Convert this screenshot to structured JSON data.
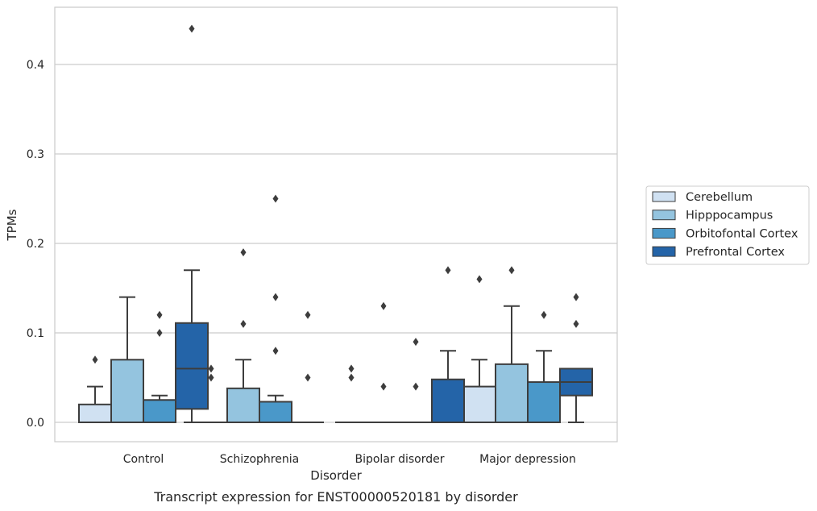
{
  "chart_data": {
    "type": "box",
    "xlabel": "Disorder",
    "ylabel": "TPMs",
    "caption": "Transcript expression for ENST00000520181 by disorder",
    "ylim": [
      -0.022,
      0.465
    ],
    "yticks": [
      0.0,
      0.1,
      0.2,
      0.3,
      0.4
    ],
    "ytick_labels": [
      "0.0",
      "0.1",
      "0.2",
      "0.3",
      "0.4"
    ],
    "grid": "y",
    "legend_position": "center-right outside",
    "categories": [
      "Control",
      "Schizophrenia",
      "Bipolar disorder",
      "Major depression"
    ],
    "series": [
      {
        "name": "Cerebellum",
        "color": "#d0e1f2",
        "boxes": [
          {
            "q1": 0.0,
            "median": 0.0,
            "q3": 0.02,
            "whislo": 0.0,
            "whishi": 0.04,
            "fliers": [
              0.07
            ]
          },
          {
            "q1": 0.0,
            "median": 0.0,
            "q3": 0.0,
            "whislo": 0.0,
            "whishi": 0.0,
            "fliers": [
              0.06,
              0.05
            ]
          },
          {
            "q1": 0.0,
            "median": 0.0,
            "q3": 0.0,
            "whislo": 0.0,
            "whishi": 0.0,
            "fliers": [
              0.06,
              0.05
            ]
          },
          {
            "q1": 0.0,
            "median": 0.0,
            "q3": 0.04,
            "whislo": 0.0,
            "whishi": 0.07,
            "fliers": [
              0.16
            ]
          }
        ]
      },
      {
        "name": "Hipppocampus",
        "color": "#94c4df",
        "boxes": [
          {
            "q1": 0.0,
            "median": 0.0,
            "q3": 0.07,
            "whislo": 0.0,
            "whishi": 0.14,
            "fliers": []
          },
          {
            "q1": 0.0,
            "median": 0.0,
            "q3": 0.038,
            "whislo": 0.0,
            "whishi": 0.07,
            "fliers": [
              0.19,
              0.11
            ]
          },
          {
            "q1": 0.0,
            "median": 0.0,
            "q3": 0.0,
            "whislo": 0.0,
            "whishi": 0.0,
            "fliers": [
              0.13,
              0.04
            ]
          },
          {
            "q1": 0.0,
            "median": 0.0,
            "q3": 0.065,
            "whislo": 0.0,
            "whishi": 0.13,
            "fliers": [
              0.17
            ]
          }
        ]
      },
      {
        "name": "Orbitofontal Cortex",
        "color": "#4a98c9",
        "boxes": [
          {
            "q1": 0.0,
            "median": 0.0,
            "q3": 0.025,
            "whislo": 0.0,
            "whishi": 0.03,
            "fliers": [
              0.12,
              0.1
            ]
          },
          {
            "q1": 0.0,
            "median": 0.0,
            "q3": 0.023,
            "whislo": 0.0,
            "whishi": 0.03,
            "fliers": [
              0.25,
              0.14,
              0.08
            ]
          },
          {
            "q1": 0.0,
            "median": 0.0,
            "q3": 0.0,
            "whislo": 0.0,
            "whishi": 0.0,
            "fliers": [
              0.09,
              0.04
            ]
          },
          {
            "q1": 0.0,
            "median": 0.0,
            "q3": 0.045,
            "whislo": 0.0,
            "whishi": 0.08,
            "fliers": [
              0.12
            ]
          }
        ]
      },
      {
        "name": "Prefrontal Cortex",
        "color": "#2464a8",
        "boxes": [
          {
            "q1": 0.015,
            "median": 0.06,
            "q3": 0.111,
            "whislo": 0.0,
            "whishi": 0.17,
            "fliers": [
              0.44
            ]
          },
          {
            "q1": 0.0,
            "median": 0.0,
            "q3": 0.0,
            "whislo": 0.0,
            "whishi": 0.0,
            "fliers": [
              0.12,
              0.05
            ]
          },
          {
            "q1": 0.0,
            "median": 0.0,
            "q3": 0.048,
            "whislo": 0.0,
            "whishi": 0.08,
            "fliers": [
              0.17
            ]
          },
          {
            "q1": 0.03,
            "median": 0.045,
            "q3": 0.06,
            "whislo": 0.0,
            "whishi": 0.06,
            "fliers": [
              0.14,
              0.11
            ]
          }
        ]
      }
    ]
  }
}
